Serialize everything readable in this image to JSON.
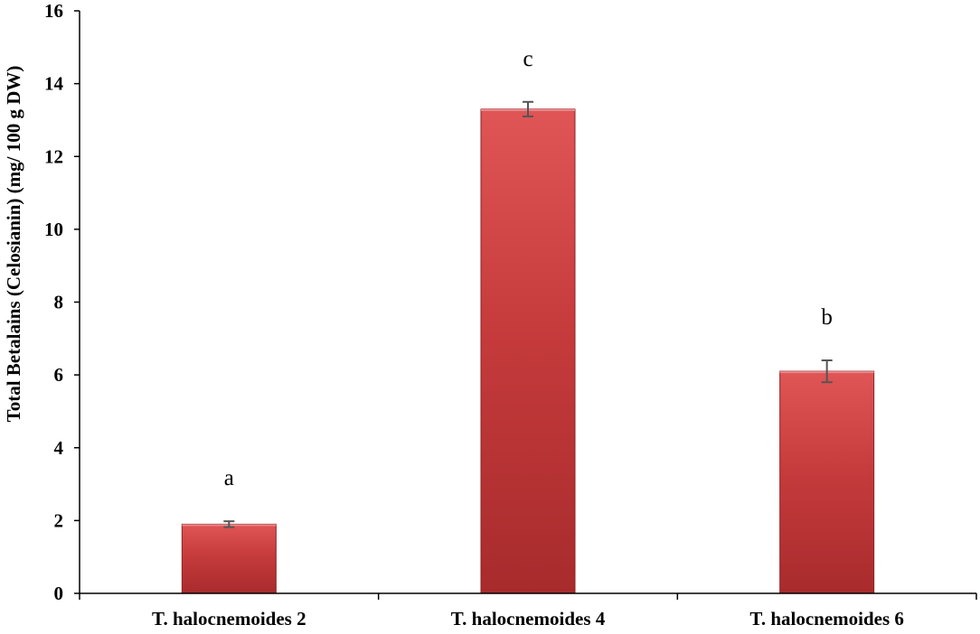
{
  "chart_data": {
    "type": "bar",
    "title": "",
    "xlabel": "",
    "ylabel": "Total Betalains (Celosianin)  (mg/ 100 g DW)",
    "ylim": [
      0,
      16
    ],
    "yticks": [
      0,
      2,
      4,
      6,
      8,
      10,
      12,
      14,
      16
    ],
    "grid": false,
    "categories": [
      "T. halocnemoides 2",
      "T. halocnemoides 4",
      "T. halocnemoides 6"
    ],
    "values": [
      1.9,
      13.3,
      6.1
    ],
    "errors": [
      0.08,
      0.2,
      0.3
    ],
    "significance_letters": [
      "a",
      "c",
      "b"
    ],
    "bar_color": "#c0393b",
    "bar_gradient": [
      "#e05556",
      "#c63b3c",
      "#a82b2c"
    ],
    "errorbar_color": "#555555"
  }
}
